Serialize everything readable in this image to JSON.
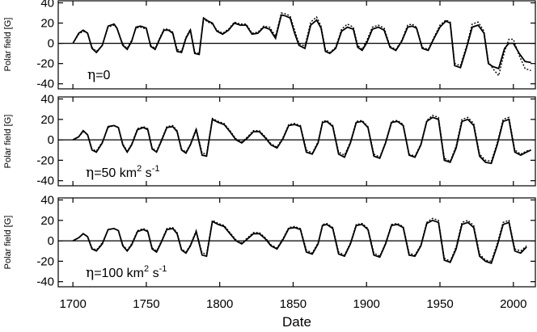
{
  "figure": {
    "x_axis_label": "Date",
    "x_ticks": [
      "1700",
      "1750",
      "1800",
      "1850",
      "1900",
      "1950",
      "2000"
    ]
  },
  "panels": [
    {
      "annotation": {
        "symbol": "η",
        "text": "=0",
        "sup1": "",
        "mid": "",
        "sup2": ""
      },
      "y_axis_label": "Polar field [G]",
      "y_ticks": [
        "40",
        "20",
        "0",
        "-20",
        "-40"
      ]
    },
    {
      "annotation": {
        "symbol": "η",
        "text": "=50 km",
        "sup1": "2",
        "mid": " s",
        "sup2": "-1"
      },
      "y_axis_label": "Polar field [G]",
      "y_ticks": [
        "40",
        "20",
        "0",
        "-20",
        "-40"
      ]
    },
    {
      "annotation": {
        "symbol": "η",
        "text": "=100 km",
        "sup1": "2",
        "mid": " s",
        "sup2": "-1"
      },
      "y_axis_label": "Polar field [G]",
      "y_ticks": [
        "40",
        "20",
        "0",
        "-20",
        "-40"
      ]
    }
  ],
  "chart_data": [
    {
      "type": "line",
      "panel": 1,
      "xlim": [
        1690,
        2015
      ],
      "ylim": [
        -45,
        42
      ],
      "ylabel": "Polar field [G]",
      "xlabel": "Date",
      "series": [
        {
          "style": "solid",
          "x": [
            1700,
            1704,
            1707,
            1710,
            1713,
            1716,
            1720,
            1724,
            1728,
            1730,
            1734,
            1737,
            1740,
            1743,
            1746,
            1750,
            1753,
            1756,
            1759,
            1762,
            1765,
            1768,
            1771,
            1774,
            1777,
            1780,
            1783,
            1786,
            1789,
            1792,
            1795,
            1798,
            1802,
            1806,
            1810,
            1814,
            1818,
            1822,
            1826,
            1830,
            1834,
            1838,
            1842,
            1845,
            1848,
            1851,
            1854,
            1858,
            1862,
            1866,
            1869,
            1872,
            1875,
            1879,
            1883,
            1887,
            1891,
            1894,
            1897,
            1900,
            1904,
            1908,
            1912,
            1916,
            1920,
            1924,
            1928,
            1931,
            1934,
            1938,
            1942,
            1946,
            1950,
            1954,
            1957,
            1960,
            1964,
            1968,
            1972,
            1976,
            1980,
            1983,
            1986,
            1990,
            1994,
            1997,
            2000,
            2004,
            2008,
            2012
          ],
          "y": [
            0,
            10,
            13,
            10,
            -5,
            -9,
            -2,
            17,
            19,
            15,
            -2,
            -6,
            2,
            16,
            17,
            15,
            -3,
            -6,
            4,
            13,
            13,
            10,
            -8,
            -9,
            5,
            13,
            -10,
            -11,
            25,
            22,
            20,
            12,
            9,
            13,
            20,
            18,
            18,
            9,
            10,
            16,
            14,
            5,
            28,
            27,
            25,
            10,
            -2,
            -5,
            18,
            23,
            15,
            -8,
            -10,
            -5,
            12,
            16,
            14,
            -4,
            -7,
            0,
            14,
            16,
            13,
            -4,
            -7,
            2,
            16,
            17,
            15,
            -5,
            -7,
            5,
            16,
            22,
            20,
            -22,
            -24,
            -5,
            16,
            18,
            10,
            -20,
            -23,
            -25,
            -5,
            0,
            0,
            -10,
            -18,
            -19
          ]
        },
        {
          "style": "dotted",
          "x": [
            1700,
            1704,
            1707,
            1710,
            1713,
            1716,
            1720,
            1724,
            1728,
            1730,
            1734,
            1737,
            1740,
            1743,
            1746,
            1750,
            1753,
            1756,
            1759,
            1762,
            1765,
            1768,
            1771,
            1774,
            1777,
            1780,
            1783,
            1786,
            1789,
            1792,
            1795,
            1798,
            1802,
            1806,
            1810,
            1814,
            1818,
            1822,
            1826,
            1830,
            1834,
            1838,
            1842,
            1845,
            1848,
            1851,
            1854,
            1858,
            1862,
            1866,
            1869,
            1872,
            1875,
            1879,
            1883,
            1887,
            1891,
            1894,
            1897,
            1900,
            1904,
            1908,
            1912,
            1916,
            1920,
            1924,
            1928,
            1931,
            1934,
            1938,
            1942,
            1946,
            1950,
            1954,
            1957,
            1960,
            1964,
            1968,
            1972,
            1976,
            1980,
            1983,
            1986,
            1990,
            1994,
            1997,
            2000,
            2004,
            2008,
            2012
          ],
          "y": [
            0,
            9,
            12,
            10,
            -4,
            -8,
            -2,
            16,
            18,
            15,
            -1,
            -5,
            3,
            15,
            16,
            14,
            -2,
            -5,
            5,
            14,
            14,
            11,
            -6,
            -8,
            6,
            14,
            -9,
            -10,
            24,
            21,
            19,
            13,
            10,
            14,
            21,
            19,
            19,
            10,
            11,
            17,
            16,
            7,
            30,
            29,
            27,
            13,
            0,
            -3,
            21,
            26,
            17,
            -6,
            -9,
            -4,
            14,
            19,
            16,
            -2,
            -6,
            2,
            16,
            18,
            15,
            -3,
            -6,
            3,
            18,
            19,
            16,
            -4,
            -6,
            6,
            18,
            23,
            21,
            -20,
            -22,
            -3,
            19,
            21,
            12,
            -18,
            -25,
            -32,
            -8,
            4,
            4,
            -12,
            -25,
            -27
          ]
        }
      ]
    },
    {
      "type": "line",
      "panel": 2,
      "xlim": [
        1690,
        2015
      ],
      "ylim": [
        -45,
        42
      ],
      "ylabel": "Polar field [G]",
      "xlabel": "Date",
      "series": [
        {
          "style": "solid",
          "x": [
            1700,
            1704,
            1707,
            1710,
            1713,
            1716,
            1720,
            1724,
            1728,
            1731,
            1734,
            1737,
            1740,
            1744,
            1748,
            1751,
            1754,
            1757,
            1760,
            1764,
            1768,
            1771,
            1774,
            1777,
            1780,
            1784,
            1788,
            1791,
            1795,
            1799,
            1803,
            1807,
            1811,
            1815,
            1819,
            1823,
            1827,
            1831,
            1835,
            1839,
            1843,
            1847,
            1851,
            1855,
            1859,
            1863,
            1867,
            1870,
            1873,
            1877,
            1881,
            1885,
            1889,
            1893,
            1897,
            1901,
            1905,
            1909,
            1913,
            1917,
            1921,
            1925,
            1929,
            1933,
            1937,
            1941,
            1945,
            1949,
            1953,
            1957,
            1961,
            1965,
            1969,
            1973,
            1977,
            1981,
            1985,
            1989,
            1993,
            1997,
            2001,
            2005,
            2009,
            2012
          ],
          "y": [
            0,
            3,
            9,
            5,
            -10,
            -12,
            -3,
            13,
            14,
            12,
            -5,
            -12,
            -5,
            10,
            12,
            10,
            -9,
            -12,
            -2,
            12,
            13,
            8,
            -10,
            -13,
            -5,
            10,
            -15,
            -16,
            20,
            17,
            15,
            8,
            0,
            -3,
            2,
            8,
            8,
            2,
            -5,
            -8,
            1,
            14,
            15,
            13,
            -12,
            -14,
            -3,
            17,
            18,
            13,
            -14,
            -17,
            -3,
            17,
            18,
            12,
            -16,
            -18,
            -3,
            17,
            18,
            14,
            -15,
            -17,
            -5,
            18,
            22,
            20,
            -20,
            -22,
            -8,
            18,
            20,
            14,
            -16,
            -22,
            -23,
            -5,
            18,
            20,
            -12,
            -15,
            -12,
            -10
          ]
        },
        {
          "style": "dotted",
          "x": [
            1700,
            1704,
            1707,
            1710,
            1713,
            1716,
            1720,
            1724,
            1728,
            1731,
            1734,
            1737,
            1740,
            1744,
            1748,
            1751,
            1754,
            1757,
            1760,
            1764,
            1768,
            1771,
            1774,
            1777,
            1780,
            1784,
            1788,
            1791,
            1795,
            1799,
            1803,
            1807,
            1811,
            1815,
            1819,
            1823,
            1827,
            1831,
            1835,
            1839,
            1843,
            1847,
            1851,
            1855,
            1859,
            1863,
            1867,
            1870,
            1873,
            1877,
            1881,
            1885,
            1889,
            1893,
            1897,
            1901,
            1905,
            1909,
            1913,
            1917,
            1921,
            1925,
            1929,
            1933,
            1937,
            1941,
            1945,
            1949,
            1953,
            1957,
            1961,
            1965,
            1969,
            1973,
            1977,
            1981,
            1985,
            1989,
            1993,
            1997,
            2001,
            2005,
            2009,
            2012
          ],
          "y": [
            0,
            3,
            8,
            5,
            -9,
            -11,
            -2,
            12,
            14,
            12,
            -4,
            -11,
            -4,
            11,
            13,
            11,
            -8,
            -11,
            -1,
            13,
            14,
            9,
            -9,
            -12,
            -4,
            11,
            -13,
            -14,
            21,
            18,
            16,
            9,
            1,
            -2,
            3,
            9,
            9,
            3,
            -4,
            -7,
            2,
            15,
            16,
            14,
            -10,
            -13,
            -2,
            18,
            19,
            14,
            -12,
            -15,
            -2,
            18,
            19,
            13,
            -14,
            -17,
            -2,
            18,
            19,
            15,
            -14,
            -16,
            -4,
            19,
            24,
            22,
            -18,
            -21,
            -6,
            20,
            22,
            16,
            -14,
            -20,
            -21,
            -3,
            20,
            22,
            -10,
            -14,
            -11,
            -10
          ]
        }
      ]
    },
    {
      "type": "line",
      "panel": 3,
      "xlim": [
        1690,
        2015
      ],
      "ylim": [
        -45,
        42
      ],
      "ylabel": "Polar field [G]",
      "xlabel": "Date",
      "series": [
        {
          "style": "solid",
          "x": [
            1700,
            1704,
            1707,
            1710,
            1713,
            1716,
            1720,
            1724,
            1728,
            1731,
            1734,
            1737,
            1740,
            1744,
            1748,
            1751,
            1754,
            1757,
            1760,
            1764,
            1768,
            1771,
            1774,
            1777,
            1780,
            1784,
            1788,
            1791,
            1795,
            1799,
            1803,
            1807,
            1811,
            1815,
            1819,
            1823,
            1827,
            1831,
            1835,
            1839,
            1843,
            1847,
            1851,
            1855,
            1859,
            1863,
            1867,
            1870,
            1873,
            1877,
            1881,
            1885,
            1889,
            1893,
            1897,
            1901,
            1905,
            1909,
            1913,
            1917,
            1921,
            1925,
            1929,
            1933,
            1937,
            1941,
            1945,
            1949,
            1953,
            1957,
            1961,
            1965,
            1969,
            1973,
            1977,
            1981,
            1985,
            1989,
            1993,
            1997,
            2001,
            2005,
            2009
          ],
          "y": [
            0,
            3,
            7,
            4,
            -8,
            -10,
            -3,
            11,
            12,
            10,
            -5,
            -10,
            -4,
            9,
            11,
            9,
            -8,
            -11,
            -2,
            11,
            12,
            7,
            -9,
            -12,
            -5,
            9,
            -14,
            -15,
            19,
            16,
            14,
            7,
            0,
            -3,
            2,
            7,
            7,
            2,
            -5,
            -8,
            1,
            12,
            13,
            11,
            -11,
            -13,
            -3,
            15,
            16,
            12,
            -13,
            -15,
            -3,
            15,
            16,
            11,
            -14,
            -16,
            -3,
            15,
            16,
            13,
            -14,
            -15,
            -5,
            17,
            20,
            18,
            -19,
            -21,
            -8,
            16,
            18,
            13,
            -15,
            -20,
            -22,
            -5,
            16,
            18,
            -10,
            -12,
            -6
          ]
        },
        {
          "style": "dotted",
          "x": [
            1700,
            1704,
            1707,
            1710,
            1713,
            1716,
            1720,
            1724,
            1728,
            1731,
            1734,
            1737,
            1740,
            1744,
            1748,
            1751,
            1754,
            1757,
            1760,
            1764,
            1768,
            1771,
            1774,
            1777,
            1780,
            1784,
            1788,
            1791,
            1795,
            1799,
            1803,
            1807,
            1811,
            1815,
            1819,
            1823,
            1827,
            1831,
            1835,
            1839,
            1843,
            1847,
            1851,
            1855,
            1859,
            1863,
            1867,
            1870,
            1873,
            1877,
            1881,
            1885,
            1889,
            1893,
            1897,
            1901,
            1905,
            1909,
            1913,
            1917,
            1921,
            1925,
            1929,
            1933,
            1937,
            1941,
            1945,
            1949,
            1953,
            1957,
            1961,
            1965,
            1969,
            1973,
            1977,
            1981,
            1985,
            1989,
            1993,
            1997,
            2001,
            2005,
            2009
          ],
          "y": [
            0,
            3,
            7,
            4,
            -7,
            -9,
            -2,
            11,
            12,
            10,
            -4,
            -9,
            -3,
            10,
            12,
            10,
            -7,
            -10,
            -1,
            12,
            13,
            8,
            -8,
            -11,
            -4,
            10,
            -12,
            -13,
            20,
            17,
            15,
            8,
            1,
            -2,
            3,
            8,
            8,
            3,
            -4,
            -7,
            2,
            13,
            14,
            12,
            -9,
            -12,
            -2,
            16,
            17,
            13,
            -11,
            -14,
            -2,
            16,
            17,
            12,
            -12,
            -15,
            -2,
            16,
            17,
            14,
            -12,
            -14,
            -4,
            18,
            22,
            20,
            -17,
            -20,
            -6,
            18,
            20,
            15,
            -13,
            -19,
            -20,
            -3,
            18,
            20,
            -8,
            -10,
            -5
          ]
        }
      ]
    }
  ]
}
